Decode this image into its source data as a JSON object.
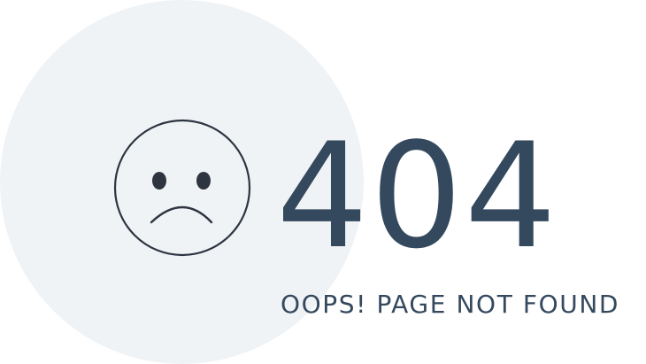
{
  "page": {
    "error_code": "404",
    "message": "OOPS! PAGE NOT FOUND"
  },
  "icons": {
    "face": "sad-face-icon"
  },
  "colors": {
    "text": "#34495e",
    "circle_background": "#f0f3f6",
    "face_stroke": "#2e3440",
    "page_background": "#ffffff"
  }
}
